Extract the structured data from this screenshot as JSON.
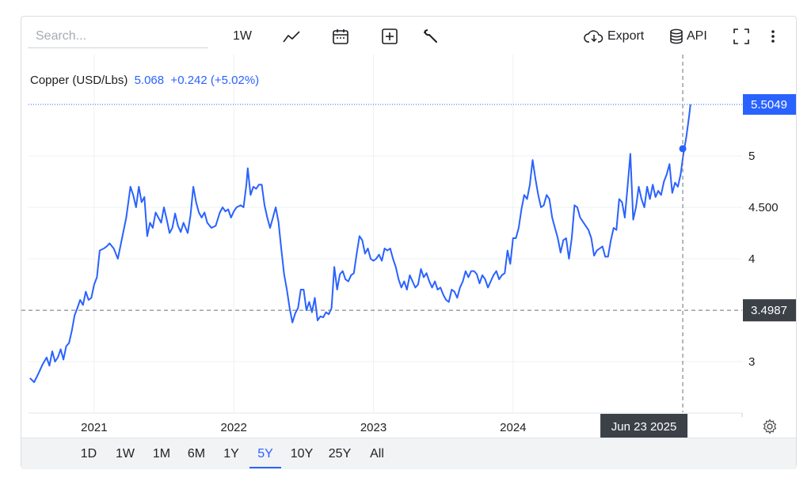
{
  "search": {
    "placeholder": "Search..."
  },
  "toolbar": {
    "interval_label": "1W",
    "export_label": "Export",
    "api_label": "API"
  },
  "icons": {
    "chart_type": "line-chart-icon",
    "calendar": "calendar-icon",
    "compare": "plus-box-icon",
    "indicators": "wrench-icon",
    "export": "cloud-download-icon",
    "api": "database-icon",
    "fullscreen": "expand-icon",
    "more": "more-vertical-icon",
    "settings": "gear-icon"
  },
  "legend": {
    "symbol": "Copper (USD/Lbs)",
    "value": "5.068  +0.242 (+5.02%)"
  },
  "colors": {
    "line": "#2962ff",
    "price_label_bg": "#2962ff",
    "crosshair_label_bg": "#3c4148",
    "grid": "#eef0f3"
  },
  "labels": {
    "last_price": "5.5049",
    "crosshair_price": "3.4987",
    "crosshair_date": "Jun 23 2025"
  },
  "ranges": [
    {
      "label": "1D",
      "active": false
    },
    {
      "label": "1W",
      "active": false
    },
    {
      "label": "1M",
      "active": false
    },
    {
      "label": "6M",
      "active": false
    },
    {
      "label": "1Y",
      "active": false
    },
    {
      "label": "5Y",
      "active": true
    },
    {
      "label": "10Y",
      "active": false
    },
    {
      "label": "25Y",
      "active": false
    },
    {
      "label": "All",
      "active": false
    }
  ],
  "chart_data": {
    "type": "line",
    "title": "",
    "xlabel": "",
    "ylabel": "",
    "x_ticks": [
      {
        "label": "2021",
        "t": 2021.0
      },
      {
        "label": "2022",
        "t": 2022.0
      },
      {
        "label": "2023",
        "t": 2023.0
      },
      {
        "label": "2024",
        "t": 2024.0
      }
    ],
    "y_ticks": [
      {
        "label": "3",
        "v": 3.0
      },
      {
        "label": "4",
        "v": 4.0
      },
      {
        "label": "4.500",
        "v": 4.5
      },
      {
        "label": "5",
        "v": 5.0
      }
    ],
    "xlim": [
      2020.53,
      2025.64
    ],
    "ylim": [
      2.5,
      5.5
    ],
    "grid": true,
    "series": [
      {
        "values": [
          [
            2020.54,
            2.84
          ],
          [
            2020.57,
            2.8
          ],
          [
            2020.6,
            2.88
          ],
          [
            2020.63,
            2.97
          ],
          [
            2020.66,
            3.04
          ],
          [
            2020.68,
            2.96
          ],
          [
            2020.7,
            3.1
          ],
          [
            2020.72,
            3.0
          ],
          [
            2020.74,
            3.04
          ],
          [
            2020.76,
            3.12
          ],
          [
            2020.78,
            3.02
          ],
          [
            2020.8,
            3.15
          ],
          [
            2020.82,
            3.18
          ],
          [
            2020.84,
            3.3
          ],
          [
            2020.86,
            3.45
          ],
          [
            2020.88,
            3.52
          ],
          [
            2020.9,
            3.6
          ],
          [
            2020.92,
            3.55
          ],
          [
            2020.94,
            3.68
          ],
          [
            2020.96,
            3.6
          ],
          [
            2020.98,
            3.62
          ],
          [
            2021.0,
            3.75
          ],
          [
            2021.02,
            3.82
          ],
          [
            2021.04,
            4.08
          ],
          [
            2021.07,
            4.1
          ],
          [
            2021.09,
            4.12
          ],
          [
            2021.11,
            4.15
          ],
          [
            2021.14,
            4.1
          ],
          [
            2021.17,
            4.0
          ],
          [
            2021.2,
            4.2
          ],
          [
            2021.23,
            4.4
          ],
          [
            2021.26,
            4.7
          ],
          [
            2021.28,
            4.62
          ],
          [
            2021.3,
            4.5
          ],
          [
            2021.32,
            4.7
          ],
          [
            2021.34,
            4.55
          ],
          [
            2021.36,
            4.6
          ],
          [
            2021.38,
            4.22
          ],
          [
            2021.4,
            4.35
          ],
          [
            2021.42,
            4.3
          ],
          [
            2021.44,
            4.45
          ],
          [
            2021.46,
            4.4
          ],
          [
            2021.48,
            4.35
          ],
          [
            2021.5,
            4.5
          ],
          [
            2021.52,
            4.38
          ],
          [
            2021.54,
            4.25
          ],
          [
            2021.56,
            4.3
          ],
          [
            2021.58,
            4.44
          ],
          [
            2021.6,
            4.32
          ],
          [
            2021.62,
            4.26
          ],
          [
            2021.64,
            4.35
          ],
          [
            2021.67,
            4.25
          ],
          [
            2021.69,
            4.42
          ],
          [
            2021.71,
            4.7
          ],
          [
            2021.73,
            4.55
          ],
          [
            2021.75,
            4.45
          ],
          [
            2021.77,
            4.4
          ],
          [
            2021.79,
            4.45
          ],
          [
            2021.81,
            4.35
          ],
          [
            2021.84,
            4.3
          ],
          [
            2021.87,
            4.32
          ],
          [
            2021.9,
            4.45
          ],
          [
            2021.92,
            4.5
          ],
          [
            2021.94,
            4.46
          ],
          [
            2021.96,
            4.48
          ],
          [
            2021.98,
            4.4
          ],
          [
            2022.0,
            4.46
          ],
          [
            2022.02,
            4.5
          ],
          [
            2022.05,
            4.52
          ],
          [
            2022.07,
            4.5
          ],
          [
            2022.09,
            4.72
          ],
          [
            2022.1,
            4.88
          ],
          [
            2022.12,
            4.62
          ],
          [
            2022.14,
            4.7
          ],
          [
            2022.16,
            4.68
          ],
          [
            2022.18,
            4.72
          ],
          [
            2022.2,
            4.72
          ],
          [
            2022.22,
            4.52
          ],
          [
            2022.24,
            4.4
          ],
          [
            2022.26,
            4.3
          ],
          [
            2022.28,
            4.4
          ],
          [
            2022.3,
            4.5
          ],
          [
            2022.32,
            4.36
          ],
          [
            2022.34,
            4.1
          ],
          [
            2022.36,
            3.85
          ],
          [
            2022.38,
            3.7
          ],
          [
            2022.4,
            3.52
          ],
          [
            2022.42,
            3.38
          ],
          [
            2022.44,
            3.47
          ],
          [
            2022.46,
            3.52
          ],
          [
            2022.48,
            3.7
          ],
          [
            2022.5,
            3.7
          ],
          [
            2022.52,
            3.5
          ],
          [
            2022.54,
            3.58
          ],
          [
            2022.56,
            3.48
          ],
          [
            2022.58,
            3.62
          ],
          [
            2022.6,
            3.4
          ],
          [
            2022.62,
            3.44
          ],
          [
            2022.64,
            3.43
          ],
          [
            2022.66,
            3.48
          ],
          [
            2022.68,
            3.46
          ],
          [
            2022.7,
            3.52
          ],
          [
            2022.72,
            3.92
          ],
          [
            2022.74,
            3.7
          ],
          [
            2022.76,
            3.85
          ],
          [
            2022.78,
            3.88
          ],
          [
            2022.8,
            3.8
          ],
          [
            2022.82,
            3.78
          ],
          [
            2022.84,
            3.84
          ],
          [
            2022.86,
            3.86
          ],
          [
            2022.88,
            4.05
          ],
          [
            2022.9,
            4.22
          ],
          [
            2022.92,
            4.18
          ],
          [
            2022.94,
            4.05
          ],
          [
            2022.96,
            4.1
          ],
          [
            2022.98,
            4.0
          ],
          [
            2023.0,
            3.98
          ],
          [
            2023.02,
            4.0
          ],
          [
            2023.04,
            4.04
          ],
          [
            2023.06,
            3.98
          ],
          [
            2023.08,
            4.1
          ],
          [
            2023.1,
            4.08
          ],
          [
            2023.12,
            4.1
          ],
          [
            2023.14,
            4.0
          ],
          [
            2023.16,
            3.92
          ],
          [
            2023.18,
            3.8
          ],
          [
            2023.2,
            3.72
          ],
          [
            2023.22,
            3.78
          ],
          [
            2023.24,
            3.7
          ],
          [
            2023.26,
            3.84
          ],
          [
            2023.28,
            3.78
          ],
          [
            2023.3,
            3.72
          ],
          [
            2023.32,
            3.75
          ],
          [
            2023.34,
            3.9
          ],
          [
            2023.36,
            3.82
          ],
          [
            2023.38,
            3.86
          ],
          [
            2023.4,
            3.78
          ],
          [
            2023.42,
            3.72
          ],
          [
            2023.44,
            3.78
          ],
          [
            2023.46,
            3.7
          ],
          [
            2023.48,
            3.72
          ],
          [
            2023.5,
            3.65
          ],
          [
            2023.52,
            3.6
          ],
          [
            2023.54,
            3.58
          ],
          [
            2023.56,
            3.7
          ],
          [
            2023.58,
            3.68
          ],
          [
            2023.6,
            3.62
          ],
          [
            2023.62,
            3.72
          ],
          [
            2023.64,
            3.78
          ],
          [
            2023.66,
            3.88
          ],
          [
            2023.68,
            3.82
          ],
          [
            2023.7,
            3.88
          ],
          [
            2023.72,
            3.88
          ],
          [
            2023.74,
            3.85
          ],
          [
            2023.76,
            3.76
          ],
          [
            2023.78,
            3.84
          ],
          [
            2023.8,
            3.8
          ],
          [
            2023.82,
            3.72
          ],
          [
            2023.84,
            3.78
          ],
          [
            2023.86,
            3.84
          ],
          [
            2023.88,
            3.88
          ],
          [
            2023.9,
            3.8
          ],
          [
            2023.92,
            3.84
          ],
          [
            2023.94,
            3.86
          ],
          [
            2023.96,
            4.08
          ],
          [
            2023.98,
            3.95
          ],
          [
            2024.0,
            4.2
          ],
          [
            2024.02,
            4.2
          ],
          [
            2024.04,
            4.3
          ],
          [
            2024.06,
            4.48
          ],
          [
            2024.08,
            4.62
          ],
          [
            2024.1,
            4.58
          ],
          [
            2024.12,
            4.72
          ],
          [
            2024.14,
            4.96
          ],
          [
            2024.16,
            4.78
          ],
          [
            2024.18,
            4.62
          ],
          [
            2024.2,
            4.5
          ],
          [
            2024.22,
            4.52
          ],
          [
            2024.24,
            4.62
          ],
          [
            2024.26,
            4.58
          ],
          [
            2024.28,
            4.4
          ],
          [
            2024.3,
            4.3
          ],
          [
            2024.32,
            4.2
          ],
          [
            2024.34,
            4.06
          ],
          [
            2024.36,
            4.18
          ],
          [
            2024.38,
            4.2
          ],
          [
            2024.4,
            4.0
          ],
          [
            2024.42,
            4.2
          ],
          [
            2024.44,
            4.52
          ],
          [
            2024.46,
            4.5
          ],
          [
            2024.48,
            4.4
          ],
          [
            2024.5,
            4.36
          ],
          [
            2024.52,
            4.32
          ],
          [
            2024.54,
            4.28
          ],
          [
            2024.56,
            4.2
          ],
          [
            2024.58,
            4.03
          ],
          [
            2024.6,
            4.08
          ],
          [
            2024.62,
            4.1
          ],
          [
            2024.64,
            4.12
          ],
          [
            2024.66,
            4.02
          ],
          [
            2024.68,
            4.02
          ],
          [
            2024.7,
            4.18
          ],
          [
            2024.72,
            4.3
          ],
          [
            2024.74,
            4.28
          ],
          [
            2024.76,
            4.58
          ],
          [
            2024.78,
            4.55
          ],
          [
            2024.8,
            4.4
          ],
          [
            2024.82,
            4.7
          ],
          [
            2024.84,
            5.02
          ],
          [
            2024.86,
            4.38
          ],
          [
            2024.88,
            4.5
          ],
          [
            2024.9,
            4.7
          ],
          [
            2024.92,
            4.58
          ],
          [
            2024.94,
            4.5
          ],
          [
            2024.96,
            4.7
          ],
          [
            2024.98,
            4.58
          ],
          [
            2025.0,
            4.72
          ],
          [
            2025.02,
            4.6
          ],
          [
            2025.04,
            4.66
          ],
          [
            2025.06,
            4.62
          ],
          [
            2025.08,
            4.75
          ],
          [
            2025.1,
            4.82
          ],
          [
            2025.12,
            4.92
          ],
          [
            2025.14,
            4.64
          ],
          [
            2025.16,
            4.74
          ],
          [
            2025.18,
            4.7
          ],
          [
            2025.2,
            4.82
          ],
          [
            2025.22,
            5.02
          ],
          [
            2025.24,
            5.18
          ],
          [
            2025.26,
            5.38
          ],
          [
            2025.27,
            5.5
          ]
        ]
      }
    ],
    "crosshair": {
      "t": 2025.215,
      "v": 3.4987,
      "point_v": 5.07
    }
  }
}
